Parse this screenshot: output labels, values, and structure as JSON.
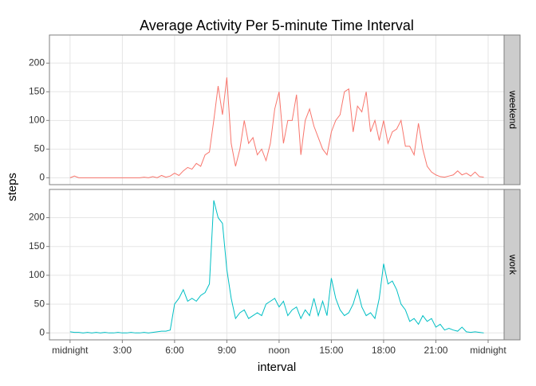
{
  "chart_data": {
    "type": "line",
    "title": "Average Activity Per 5-minute Time Interval",
    "x_label": "interval",
    "y_label": "steps",
    "x": [
      0,
      15,
      30,
      45,
      60,
      75,
      90,
      105,
      120,
      135,
      150,
      165,
      180,
      195,
      210,
      225,
      240,
      255,
      270,
      285,
      300,
      315,
      330,
      345,
      360,
      375,
      390,
      405,
      420,
      435,
      450,
      465,
      480,
      495,
      510,
      525,
      540,
      555,
      570,
      585,
      600,
      615,
      630,
      645,
      660,
      675,
      690,
      705,
      720,
      735,
      750,
      765,
      780,
      795,
      810,
      825,
      840,
      855,
      870,
      885,
      900,
      915,
      930,
      945,
      960,
      975,
      990,
      1005,
      1020,
      1035,
      1050,
      1065,
      1080,
      1095,
      1110,
      1125,
      1140,
      1155,
      1170,
      1185,
      1200,
      1215,
      1230,
      1245,
      1260,
      1275,
      1290,
      1305,
      1320,
      1335,
      1350,
      1365,
      1380,
      1395,
      1410,
      1425
    ],
    "series": [
      {
        "name": "weekend",
        "color": "#f8766d",
        "values": [
          0,
          3,
          0,
          0,
          0,
          0,
          0,
          0,
          0,
          0,
          0,
          0,
          0,
          0,
          0,
          0,
          0,
          1,
          0,
          2,
          0,
          4,
          1,
          3,
          8,
          4,
          12,
          18,
          15,
          25,
          20,
          40,
          45,
          100,
          160,
          110,
          175,
          60,
          20,
          50,
          100,
          60,
          70,
          40,
          50,
          30,
          60,
          120,
          150,
          60,
          100,
          100,
          145,
          40,
          100,
          120,
          90,
          70,
          50,
          40,
          80,
          100,
          110,
          150,
          155,
          80,
          125,
          115,
          150,
          80,
          100,
          65,
          100,
          60,
          80,
          85,
          100,
          55,
          55,
          40,
          95,
          50,
          20,
          10,
          5,
          2,
          1,
          3,
          5,
          12,
          5,
          8,
          3,
          10,
          2,
          1
        ]
      },
      {
        "name": "work",
        "color": "#00bfc4",
        "values": [
          2,
          1,
          1,
          0,
          1,
          0,
          1,
          0,
          1,
          0,
          0,
          1,
          0,
          0,
          1,
          0,
          0,
          1,
          0,
          1,
          2,
          3,
          3,
          5,
          50,
          60,
          75,
          55,
          60,
          55,
          65,
          70,
          85,
          230,
          200,
          190,
          110,
          60,
          25,
          35,
          40,
          25,
          30,
          35,
          30,
          50,
          55,
          60,
          45,
          55,
          30,
          40,
          45,
          25,
          40,
          30,
          60,
          30,
          55,
          30,
          95,
          60,
          40,
          30,
          35,
          50,
          75,
          45,
          30,
          35,
          25,
          60,
          120,
          85,
          90,
          75,
          50,
          40,
          20,
          25,
          15,
          30,
          20,
          25,
          10,
          15,
          5,
          8,
          5,
          3,
          10,
          2,
          1,
          2,
          1,
          0
        ]
      }
    ],
    "xlim": [
      -71,
      1495
    ],
    "xticks": [
      {
        "value": 0,
        "label": "midnight"
      },
      {
        "value": 180,
        "label": "3:00"
      },
      {
        "value": 360,
        "label": "6:00"
      },
      {
        "value": 540,
        "label": "9:00"
      },
      {
        "value": 720,
        "label": "noon"
      },
      {
        "value": 900,
        "label": "15:00"
      },
      {
        "value": 1080,
        "label": "18:00"
      },
      {
        "value": 1260,
        "label": "21:00"
      },
      {
        "value": 1440,
        "label": "midnight"
      }
    ],
    "ylim": [
      -12,
      249
    ],
    "yticks": [
      0,
      50,
      100,
      150,
      200
    ],
    "grid": true
  }
}
